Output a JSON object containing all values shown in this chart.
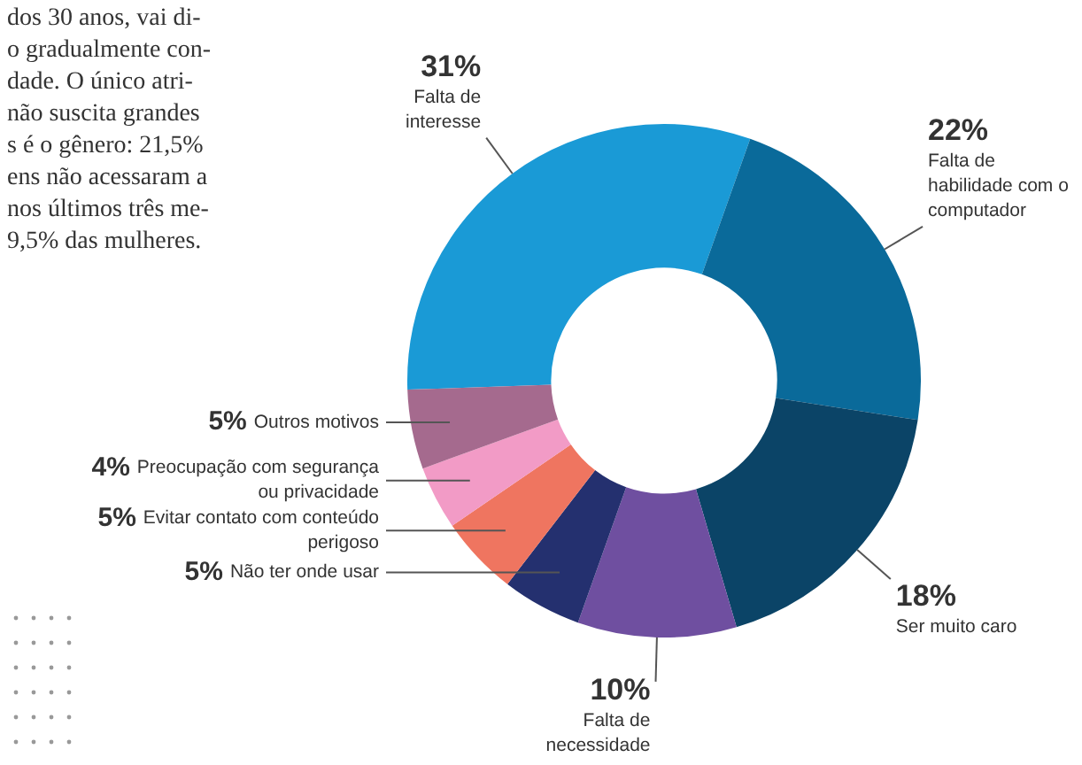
{
  "chart_data": {
    "type": "donut",
    "categories": [
      "Falta de interesse",
      "Falta de habilidade com o computador",
      "Ser muito caro",
      "Falta de necessidade",
      "Não ter onde usar",
      "Evitar contato com conteúdo perigoso",
      "Preocupação com segurança ou privacidade",
      "Outros motivos"
    ],
    "values": [
      31,
      22,
      18,
      10,
      5,
      5,
      4,
      5
    ],
    "value_labels": [
      "31%",
      "22%",
      "18%",
      "10%",
      "5%",
      "5%",
      "4%",
      "5%"
    ],
    "colors": [
      "#1a9ad6",
      "#0a6a9a",
      "#0b4467",
      "#6f4fa0",
      "#24306f",
      "#ef7560",
      "#f29bc6",
      "#a56a8e"
    ],
    "annotations": [
      "dos 30 anos, vai di-",
      "o gradualmente con-",
      "dade. O único atri-",
      "não suscita grandes",
      "s é o gênero: 21,5%",
      "ens não acessaram a",
      "nos últimos três me-",
      "9,5% das mulheres."
    ]
  }
}
